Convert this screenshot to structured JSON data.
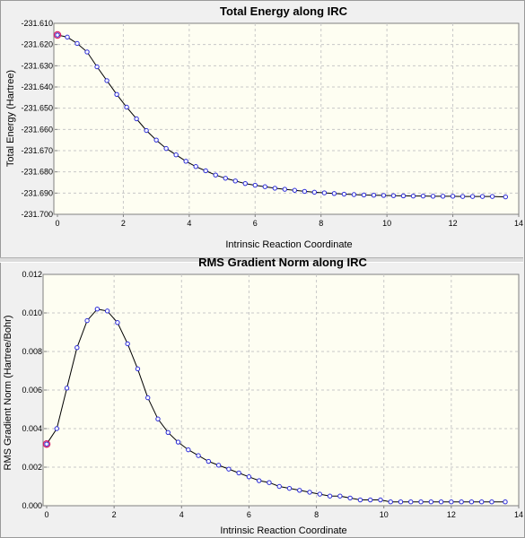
{
  "chart_data": [
    {
      "type": "line",
      "title": "Total Energy along IRC",
      "xlabel": "Intrinsic Reaction Coordinate",
      "ylabel": "Total Energy (Hartree)",
      "xlim": [
        0,
        14
      ],
      "ylim": [
        -231.7,
        -231.61
      ],
      "xticks": [
        "0",
        "2",
        "4",
        "6",
        "8",
        "10",
        "12",
        "14"
      ],
      "yticks": [
        "-231.610",
        "-231.620",
        "-231.630",
        "-231.640",
        "-231.650",
        "-231.660",
        "-231.670",
        "-231.680",
        "-231.690",
        "-231.700"
      ],
      "grid": true,
      "series": [
        {
          "x": [
            0,
            0.3,
            0.6,
            0.9,
            1.2,
            1.5,
            1.8,
            2.1,
            2.4,
            2.7,
            3.0,
            3.3,
            3.6,
            3.9,
            4.2,
            4.5,
            4.8,
            5.1,
            5.4,
            5.7,
            6.0,
            6.3,
            6.6,
            6.9,
            7.2,
            7.5,
            7.8,
            8.1,
            8.4,
            8.7,
            9.0,
            9.3,
            9.6,
            9.9,
            10.2,
            10.5,
            10.8,
            11.1,
            11.4,
            11.7,
            12.0,
            12.3,
            12.6,
            12.9,
            13.2,
            13.6
          ],
          "y": [
            -231.6155,
            -231.6165,
            -231.6195,
            -231.6235,
            -231.6305,
            -231.637,
            -231.6435,
            -231.6495,
            -231.655,
            -231.6605,
            -231.665,
            -231.669,
            -231.672,
            -231.675,
            -231.6775,
            -231.6795,
            -231.6815,
            -231.683,
            -231.6843,
            -231.6855,
            -231.6863,
            -231.687,
            -231.6877,
            -231.6882,
            -231.6887,
            -231.6892,
            -231.6896,
            -231.6899,
            -231.6902,
            -231.6905,
            -231.6907,
            -231.6909,
            -231.691,
            -231.6911,
            -231.6912,
            -231.6913,
            -231.6914,
            -231.6914,
            -231.6915,
            -231.6915,
            -231.6915,
            -231.6916,
            -231.6916,
            -231.6916,
            -231.6916,
            -231.6918
          ]
        }
      ]
    },
    {
      "type": "line",
      "title": "RMS Gradient Norm along IRC",
      "xlabel": "Intrinsic Reaction Coordinate",
      "ylabel": "RMS Gradient Norm (Hartree/Bohr)",
      "xlim": [
        0,
        14
      ],
      "ylim": [
        0.0,
        0.012
      ],
      "xticks": [
        "0",
        "2",
        "4",
        "6",
        "8",
        "10",
        "12",
        "14"
      ],
      "yticks": [
        "0.000",
        "0.002",
        "0.004",
        "0.006",
        "0.008",
        "0.010",
        "0.012"
      ],
      "grid": true,
      "series": [
        {
          "x": [
            0,
            0.3,
            0.6,
            0.9,
            1.2,
            1.5,
            1.8,
            2.1,
            2.4,
            2.7,
            3.0,
            3.3,
            3.6,
            3.9,
            4.2,
            4.5,
            4.8,
            5.1,
            5.4,
            5.7,
            6.0,
            6.3,
            6.6,
            6.9,
            7.2,
            7.5,
            7.8,
            8.1,
            8.4,
            8.7,
            9.0,
            9.3,
            9.6,
            9.9,
            10.2,
            10.5,
            10.8,
            11.1,
            11.4,
            11.7,
            12.0,
            12.3,
            12.6,
            12.9,
            13.2,
            13.6
          ],
          "y": [
            0.0032,
            0.004,
            0.0061,
            0.0082,
            0.0096,
            0.0102,
            0.0101,
            0.0095,
            0.0084,
            0.0071,
            0.0056,
            0.0045,
            0.0038,
            0.0033,
            0.0029,
            0.0026,
            0.0023,
            0.0021,
            0.0019,
            0.0017,
            0.0015,
            0.0013,
            0.0012,
            0.001,
            0.0009,
            0.0008,
            0.0007,
            0.0006,
            0.0005,
            0.0005,
            0.0004,
            0.0003,
            0.0003,
            0.0003,
            0.0002,
            0.0002,
            0.0002,
            0.0002,
            0.0002,
            0.0002,
            0.0002,
            0.0002,
            0.0002,
            0.0002,
            0.0002,
            0.0002
          ]
        }
      ]
    }
  ]
}
